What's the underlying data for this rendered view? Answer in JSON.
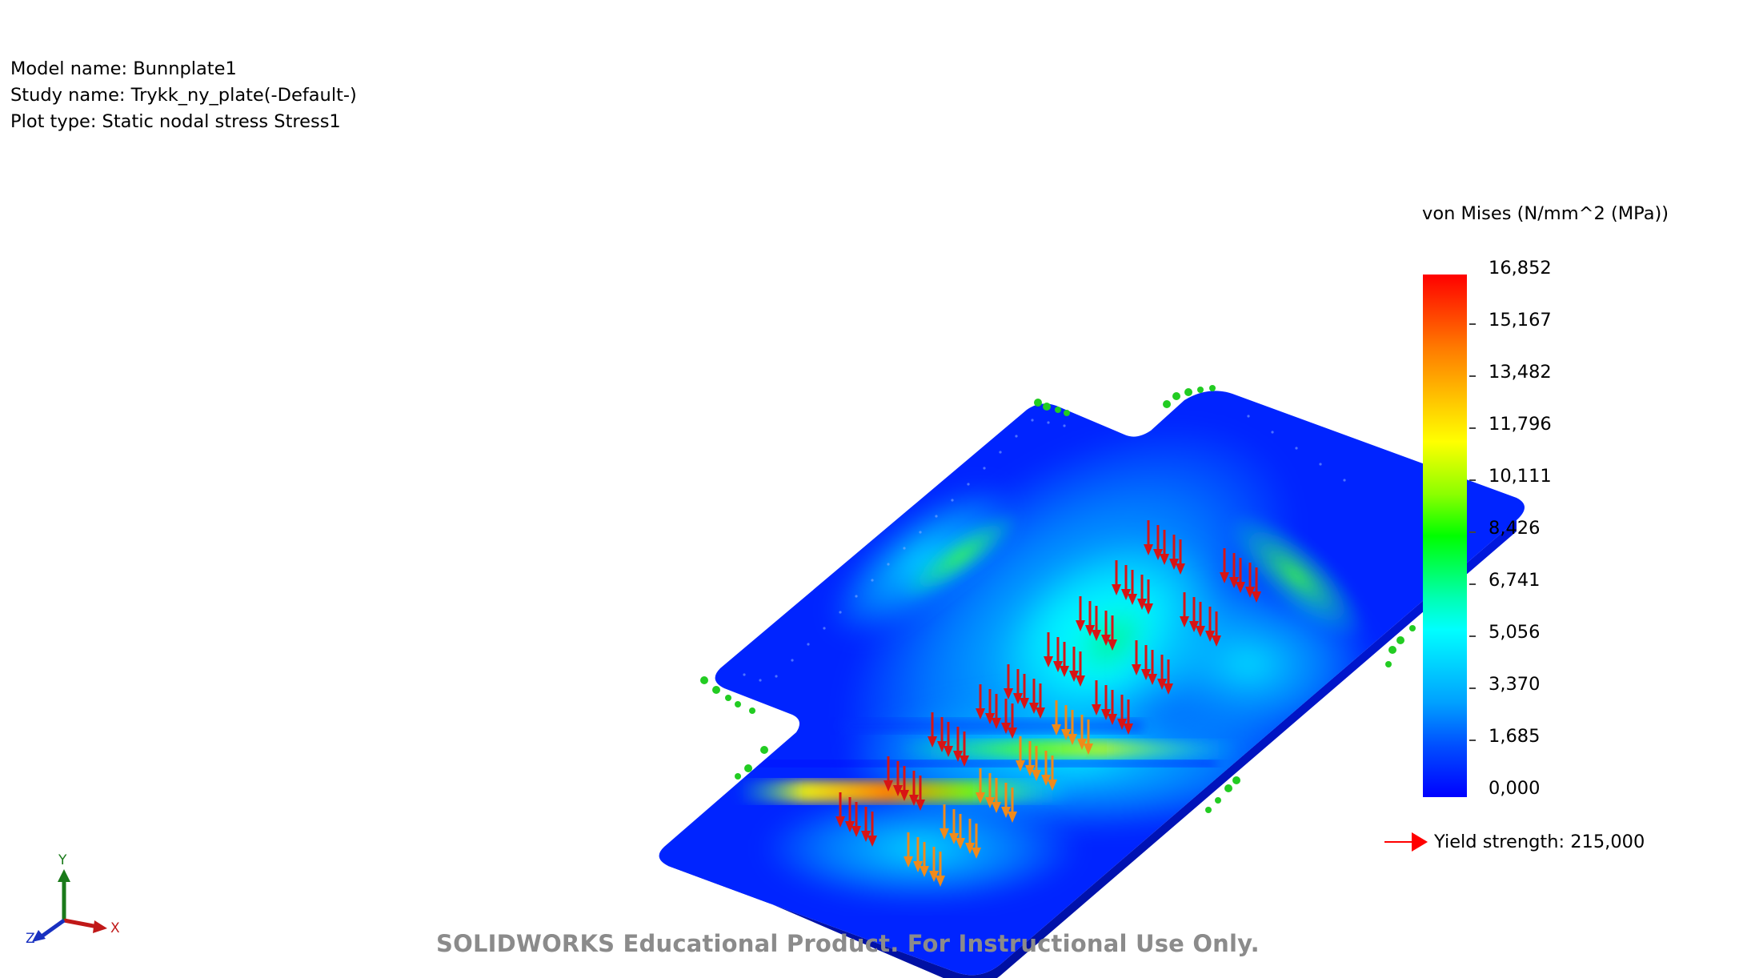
{
  "header": {
    "model_name": "Model name: Bunnplate1",
    "study_name": "Study name: Trykk_ny_plate(-Default-)",
    "plot_type": "Plot type: Static nodal stress Stress1"
  },
  "legend": {
    "title": "von Mises (N/mm^2 (MPa))",
    "ticks": [
      "16,852",
      "15,167",
      "13,482",
      "11,796",
      "10,111",
      "8,426",
      "6,741",
      "5,056",
      "3,370",
      "1,685",
      "0,000"
    ],
    "yield_label": "Yield strength: 215,000",
    "yield_color": "#ff0000"
  },
  "axes": {
    "x": "X",
    "y": "Y",
    "z": "Z"
  },
  "watermark": "SOLIDWORKS Educational Product. For Instructional Use Only.",
  "colors": {
    "plate_base": "#0022ff",
    "load_arrow_red": "#d81414",
    "load_arrow_orange": "#f08a1a",
    "fixture_green": "#22cc22"
  }
}
